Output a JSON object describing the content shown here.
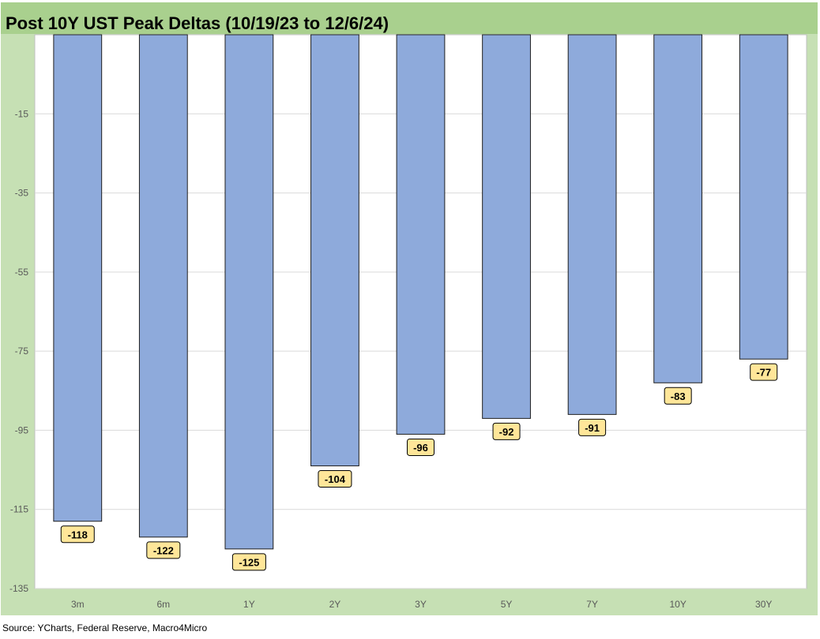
{
  "title": "Post 10Y UST Peak Deltas (10/19/23 to 12/6/24)",
  "source": "Source: YCharts, Federal Reserve, Macro4Micro",
  "colors": {
    "title_bar": "#a9d08e",
    "chart_bg": "#c6e0b4",
    "plot_bg": "#ffffff",
    "bar_fill": "#8eaadb",
    "bar_stroke": "#1f1f1f",
    "label_fill": "#ffe699",
    "gridline": "#d9d9d9"
  },
  "chart_data": {
    "type": "bar",
    "title": "Post 10Y UST Peak Deltas (10/19/23 to 12/6/24)",
    "xlabel": "",
    "ylabel": "",
    "categories": [
      "3m",
      "6m",
      "1Y",
      "2Y",
      "3Y",
      "5Y",
      "7Y",
      "10Y",
      "30Y"
    ],
    "values": [
      -118,
      -122,
      -125,
      -104,
      -96,
      -92,
      -91,
      -83,
      -77
    ],
    "data_labels": [
      "-118",
      "-122",
      "-125",
      "-104",
      "-96",
      "-92",
      "-91",
      "-83",
      "-77"
    ],
    "ylim": [
      -135,
      5
    ],
    "y_ticks": [
      -15,
      -35,
      -55,
      -75,
      -95,
      -115,
      -135
    ],
    "y_tick_labels": [
      "-15",
      "-35",
      "-55",
      "-75",
      "-95",
      "-115",
      "-135"
    ],
    "grid": true,
    "legend": "none"
  }
}
